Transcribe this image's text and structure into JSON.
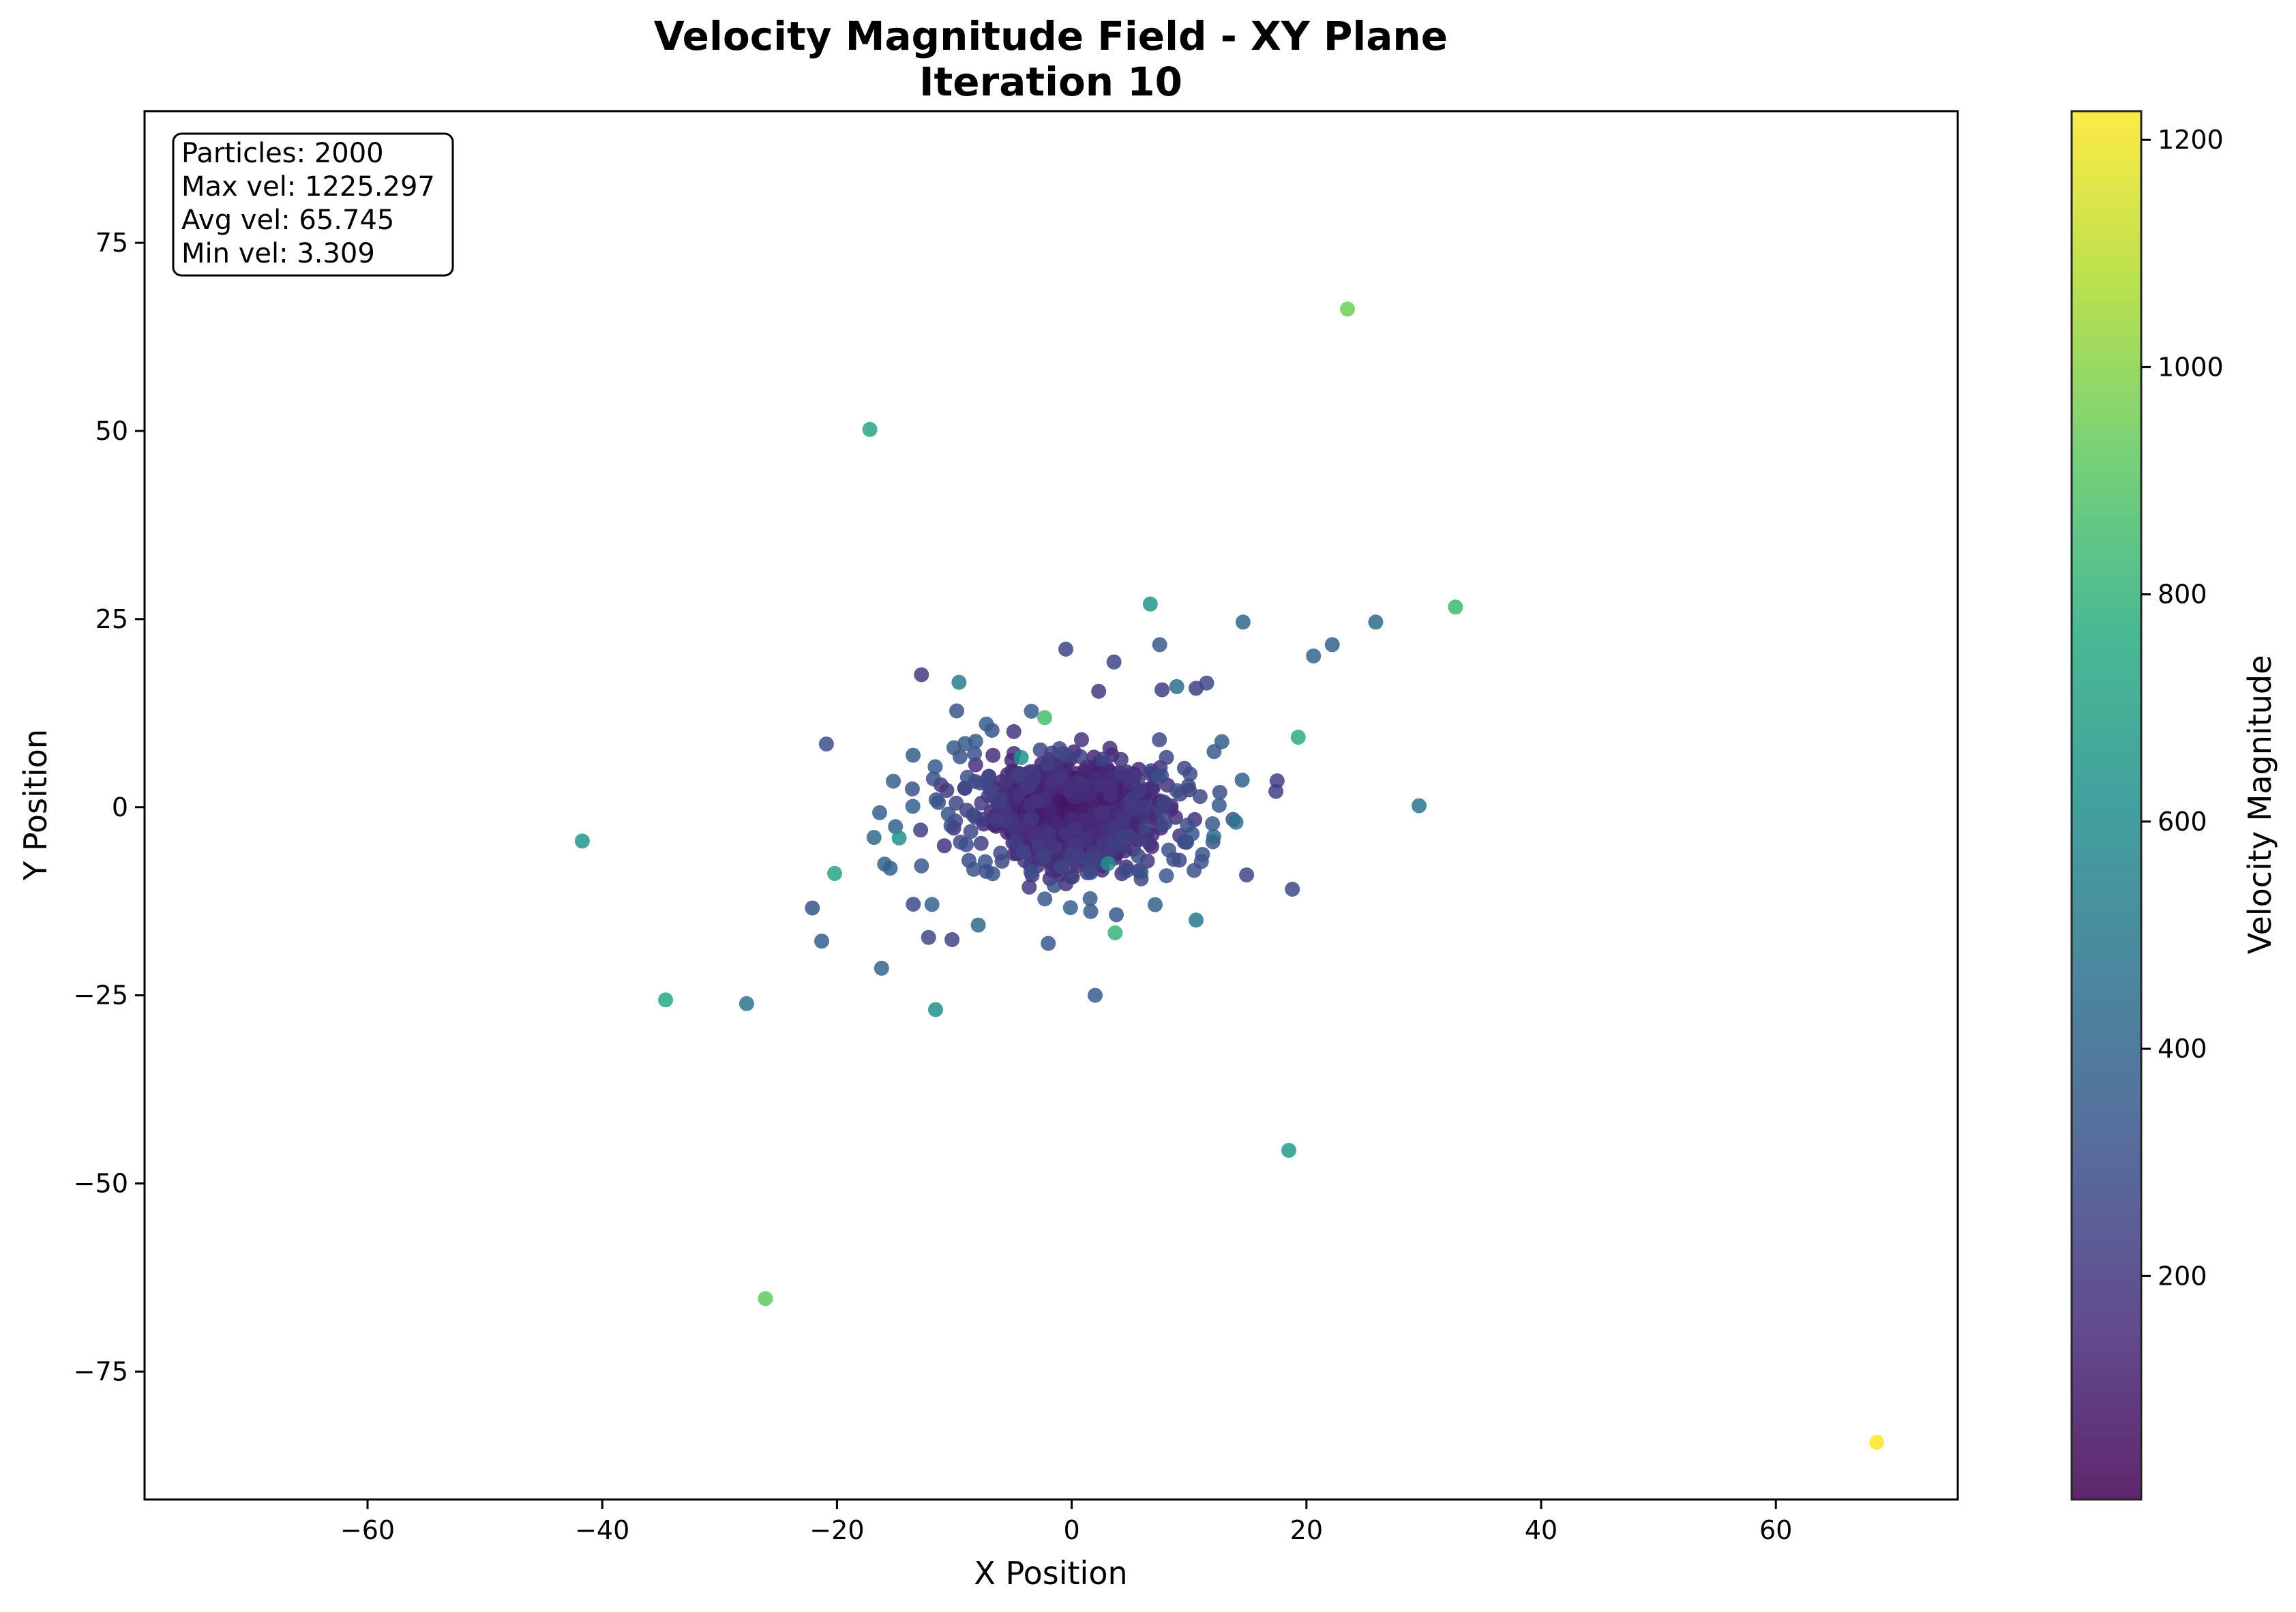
{
  "chart_data": {
    "type": "scatter",
    "title": "Velocity Magnitude Field - XY Plane",
    "subtitle": "Iteration 10",
    "xlabel": "X Position",
    "ylabel": "Y Position",
    "xlim": [
      -79,
      75.5
    ],
    "ylim": [
      -92,
      92.5
    ],
    "x_ticks": [
      -60,
      -40,
      -20,
      0,
      20,
      40,
      60
    ],
    "y_ticks": [
      -75,
      -50,
      -25,
      0,
      25,
      50,
      75
    ],
    "x_tick_labels": [
      "−60",
      "−40",
      "−20",
      "0",
      "20",
      "40",
      "60"
    ],
    "y_tick_labels": [
      "−75",
      "−50",
      "−25",
      "0",
      "25",
      "50",
      "75"
    ],
    "grid": false,
    "colorbar": {
      "label": "Velocity Magnitude",
      "range": [
        3.309,
        1225.297
      ],
      "ticks": [
        200,
        400,
        600,
        800,
        1000,
        1200
      ],
      "tick_labels": [
        "200",
        "400",
        "600",
        "800",
        "1000",
        "1200"
      ],
      "colormap": "viridis"
    },
    "stats": {
      "particles": "Particles: 2000",
      "max_vel": "Max vel: 1225.297",
      "avg_vel": "Avg vel: 65.745",
      "min_vel": "Min vel: 3.309"
    },
    "outliers": [
      {
        "x": 23.5,
        "y": 66.2,
        "v": 950
      },
      {
        "x": -17.2,
        "y": 50.2,
        "v": 720
      },
      {
        "x": 6.7,
        "y": 27.0,
        "v": 640
      },
      {
        "x": 32.7,
        "y": 26.6,
        "v": 820
      },
      {
        "x": 14.6,
        "y": 24.6,
        "v": 420
      },
      {
        "x": 25.9,
        "y": 24.6,
        "v": 430
      },
      {
        "x": 22.2,
        "y": 21.6,
        "v": 380
      },
      {
        "x": 7.5,
        "y": 21.6,
        "v": 350
      },
      {
        "x": 20.6,
        "y": 20.1,
        "v": 400
      },
      {
        "x": -0.5,
        "y": 21.0,
        "v": 250
      },
      {
        "x": 3.6,
        "y": 19.3,
        "v": 260
      },
      {
        "x": -12.8,
        "y": 17.6,
        "v": 220
      },
      {
        "x": -9.6,
        "y": 16.6,
        "v": 520
      },
      {
        "x": 11.5,
        "y": 16.5,
        "v": 270
      },
      {
        "x": 10.6,
        "y": 15.8,
        "v": 240
      },
      {
        "x": 7.7,
        "y": 15.6,
        "v": 230
      },
      {
        "x": 2.3,
        "y": 15.4,
        "v": 220
      },
      {
        "x": -9.8,
        "y": 12.8,
        "v": 330
      },
      {
        "x": -2.3,
        "y": 11.9,
        "v": 850
      },
      {
        "x": 19.3,
        "y": 9.3,
        "v": 760
      },
      {
        "x": -20.9,
        "y": 8.4,
        "v": 300
      },
      {
        "x": -4.3,
        "y": 6.6,
        "v": 620
      },
      {
        "x": 29.6,
        "y": 0.2,
        "v": 470
      },
      {
        "x": 14.0,
        "y": -2.0,
        "v": 460
      },
      {
        "x": 17.5,
        "y": 3.5,
        "v": 230
      },
      {
        "x": 17.4,
        "y": 2.1,
        "v": 240
      },
      {
        "x": -41.7,
        "y": -4.5,
        "v": 650
      },
      {
        "x": -14.7,
        "y": -4.1,
        "v": 620
      },
      {
        "x": 12.1,
        "y": -3.9,
        "v": 430
      },
      {
        "x": -20.2,
        "y": -8.8,
        "v": 720
      },
      {
        "x": 3.1,
        "y": -7.5,
        "v": 600
      },
      {
        "x": 14.9,
        "y": -9.0,
        "v": 260
      },
      {
        "x": 18.8,
        "y": -10.9,
        "v": 280
      },
      {
        "x": 10.6,
        "y": -15.0,
        "v": 490
      },
      {
        "x": 3.7,
        "y": -16.7,
        "v": 800
      },
      {
        "x": -22.1,
        "y": -13.4,
        "v": 320
      },
      {
        "x": -13.5,
        "y": -12.9,
        "v": 280
      },
      {
        "x": -12.2,
        "y": -17.3,
        "v": 270
      },
      {
        "x": -10.2,
        "y": -17.6,
        "v": 260
      },
      {
        "x": -2.0,
        "y": -18.1,
        "v": 350
      },
      {
        "x": -21.3,
        "y": -17.8,
        "v": 380
      },
      {
        "x": -16.2,
        "y": -21.4,
        "v": 400
      },
      {
        "x": 2.0,
        "y": -25.0,
        "v": 360
      },
      {
        "x": -34.6,
        "y": -25.6,
        "v": 740
      },
      {
        "x": -27.7,
        "y": -26.1,
        "v": 470
      },
      {
        "x": -11.6,
        "y": -26.9,
        "v": 610
      },
      {
        "x": 18.5,
        "y": -45.6,
        "v": 660
      },
      {
        "x": -26.1,
        "y": -65.3,
        "v": 920
      },
      {
        "x": 68.6,
        "y": -84.4,
        "v": 1225.297
      }
    ]
  }
}
